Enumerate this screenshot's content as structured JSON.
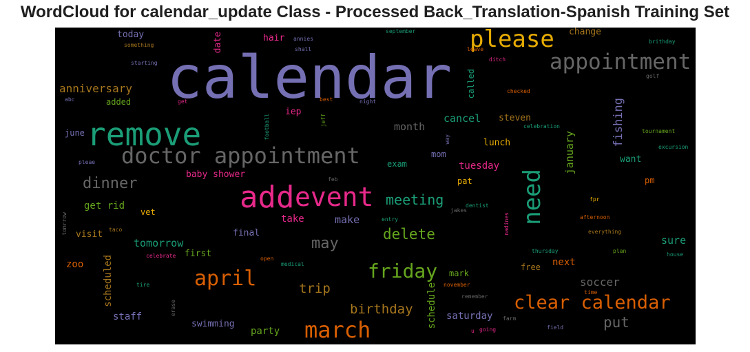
{
  "chart_data": {
    "type": "wordcloud",
    "title": "WordCloud for calendar_update Class - Processed Back_Translation-Spanish Training Set",
    "background": "#000000",
    "palette": [
      "#7570b3",
      "#1b9e77",
      "#d95f02",
      "#e7298a",
      "#66a61e",
      "#e6ab02",
      "#a6761d",
      "#666666"
    ],
    "words": [
      {
        "text": "calendar",
        "weight": 100,
        "color": "#7570b3"
      },
      {
        "text": "remove",
        "weight": 57,
        "color": "#1b9e77"
      },
      {
        "text": "add",
        "weight": 52,
        "color": "#e7298a"
      },
      {
        "text": "event",
        "weight": 46,
        "color": "#e7298a"
      },
      {
        "text": "need",
        "weight": 40,
        "color": "#1b9e77"
      },
      {
        "text": "please",
        "weight": 38,
        "color": "#e6ab02"
      },
      {
        "text": "doctor appointment",
        "weight": 38,
        "color": "#666666"
      },
      {
        "text": "appointment",
        "weight": 36,
        "color": "#666666"
      },
      {
        "text": "march",
        "weight": 36,
        "color": "#d95f02"
      },
      {
        "text": "april",
        "weight": 33,
        "color": "#d95f02"
      },
      {
        "text": "clear calendar",
        "weight": 31,
        "color": "#d95f02"
      },
      {
        "text": "friday",
        "weight": 31,
        "color": "#66a61e"
      },
      {
        "text": "dinner",
        "weight": 26,
        "color": "#666666"
      },
      {
        "text": "may",
        "weight": 24,
        "color": "#666666"
      },
      {
        "text": "delete",
        "weight": 24,
        "color": "#66a61e"
      },
      {
        "text": "meeting",
        "weight": 22,
        "color": "#1b9e77"
      },
      {
        "text": "put",
        "weight": 22,
        "color": "#666666"
      },
      {
        "text": "fishing",
        "weight": 20,
        "color": "#7570b3"
      },
      {
        "text": "birthday",
        "weight": 20,
        "color": "#a6761d"
      },
      {
        "text": "trip",
        "weight": 20,
        "color": "#a6761d"
      },
      {
        "text": "soccer",
        "weight": 17,
        "color": "#666666"
      },
      {
        "text": "january",
        "weight": 17,
        "color": "#66a61e"
      },
      {
        "text": "anniversary",
        "weight": 17,
        "color": "#a6761d"
      },
      {
        "text": "cancel",
        "weight": 17,
        "color": "#1b9e77"
      },
      {
        "text": "tomorrow",
        "weight": 16,
        "color": "#1b9e77"
      },
      {
        "text": "month",
        "weight": 16,
        "color": "#666666"
      },
      {
        "text": "scheduled",
        "weight": 16,
        "color": "#a6761d"
      },
      {
        "text": "schedule",
        "weight": 16,
        "color": "#66a61e"
      },
      {
        "text": "sure",
        "weight": 16,
        "color": "#1b9e77"
      },
      {
        "text": "make",
        "weight": 16,
        "color": "#7570b3"
      },
      {
        "text": "take",
        "weight": 16,
        "color": "#e7298a"
      },
      {
        "text": "tuesday",
        "weight": 15,
        "color": "#e7298a"
      },
      {
        "text": "saturday",
        "weight": 15,
        "color": "#7570b3"
      },
      {
        "text": "party",
        "weight": 15,
        "color": "#66a61e"
      },
      {
        "text": "staff",
        "weight": 15,
        "color": "#7570b3"
      },
      {
        "text": "next",
        "weight": 14,
        "color": "#d95f02"
      },
      {
        "text": "baby shower",
        "weight": 14,
        "color": "#e7298a"
      },
      {
        "text": "get rid",
        "weight": 14,
        "color": "#66a61e"
      },
      {
        "text": "change",
        "weight": 13,
        "color": "#a6761d"
      },
      {
        "text": "steven",
        "weight": 13,
        "color": "#a6761d"
      },
      {
        "text": "lunch",
        "weight": 13,
        "color": "#e6ab02"
      },
      {
        "text": "want",
        "weight": 13,
        "color": "#1b9e77"
      },
      {
        "text": "swimming",
        "weight": 13,
        "color": "#7570b3"
      },
      {
        "text": "date",
        "weight": 13,
        "color": "#e7298a"
      },
      {
        "text": "today",
        "weight": 13,
        "color": "#7570b3"
      },
      {
        "text": "hair",
        "weight": 13,
        "color": "#e7298a"
      },
      {
        "text": "zoo",
        "weight": 14,
        "color": "#d95f02"
      },
      {
        "text": "first",
        "weight": 13,
        "color": "#66a61e"
      },
      {
        "text": "visit",
        "weight": 13,
        "color": "#a6761d"
      },
      {
        "text": "final",
        "weight": 13,
        "color": "#7570b3"
      },
      {
        "text": "iep",
        "weight": 13,
        "color": "#e7298a"
      },
      {
        "text": "mom",
        "weight": 12,
        "color": "#7570b3"
      },
      {
        "text": "pat",
        "weight": 12,
        "color": "#e6ab02"
      },
      {
        "text": "pm",
        "weight": 12,
        "color": "#d95f02"
      },
      {
        "text": "exam",
        "weight": 12,
        "color": "#1b9e77"
      },
      {
        "text": "mark",
        "weight": 12,
        "color": "#66a61e"
      },
      {
        "text": "free",
        "weight": 12,
        "color": "#a6761d"
      },
      {
        "text": "called",
        "weight": 12,
        "color": "#1b9e77"
      },
      {
        "text": "added",
        "weight": 12,
        "color": "#66a61e"
      },
      {
        "text": "june",
        "weight": 12,
        "color": "#7570b3"
      },
      {
        "text": "vet",
        "weight": 12,
        "color": "#e6ab02"
      },
      {
        "text": "something",
        "weight": 8,
        "color": "#a6761d"
      },
      {
        "text": "starting",
        "weight": 8,
        "color": "#7570b3"
      },
      {
        "text": "annies",
        "weight": 8,
        "color": "#7570b3"
      },
      {
        "text": "shall",
        "weight": 8,
        "color": "#7570b3"
      },
      {
        "text": "september",
        "weight": 8,
        "color": "#1b9e77"
      },
      {
        "text": "leave",
        "weight": 8,
        "color": "#d95f02"
      },
      {
        "text": "ditch",
        "weight": 8,
        "color": "#e7298a"
      },
      {
        "text": "brithday",
        "weight": 8,
        "color": "#1b9e77"
      },
      {
        "text": "golf",
        "weight": 8,
        "color": "#666666"
      },
      {
        "text": "checked",
        "weight": 8,
        "color": "#d95f02"
      },
      {
        "text": "best",
        "weight": 8,
        "color": "#d95f02"
      },
      {
        "text": "night",
        "weight": 8,
        "color": "#7570b3"
      },
      {
        "text": "abc",
        "weight": 8,
        "color": "#7570b3"
      },
      {
        "text": "get",
        "weight": 8,
        "color": "#e7298a"
      },
      {
        "text": "football",
        "weight": 8,
        "color": "#1b9e77"
      },
      {
        "text": "jeff",
        "weight": 8,
        "color": "#66a61e"
      },
      {
        "text": "celebration",
        "weight": 8,
        "color": "#1b9e77"
      },
      {
        "text": "tournament",
        "weight": 8,
        "color": "#66a61e"
      },
      {
        "text": "excursion",
        "weight": 8,
        "color": "#1b9e77"
      },
      {
        "text": "way",
        "weight": 8,
        "color": "#7570b3"
      },
      {
        "text": "pleae",
        "weight": 8,
        "color": "#7570b3"
      },
      {
        "text": "feb",
        "weight": 8,
        "color": "#666666"
      },
      {
        "text": "fpr",
        "weight": 8,
        "color": "#e6ab02"
      },
      {
        "text": "dentist",
        "weight": 8,
        "color": "#1b9e77"
      },
      {
        "text": "jakes",
        "weight": 8,
        "color": "#666666"
      },
      {
        "text": "afternoon",
        "weight": 8,
        "color": "#d95f02"
      },
      {
        "text": "tomrrow",
        "weight": 8,
        "color": "#666666"
      },
      {
        "text": "taco",
        "weight": 8,
        "color": "#a6761d"
      },
      {
        "text": "entry",
        "weight": 8,
        "color": "#1b9e77"
      },
      {
        "text": "everything",
        "weight": 8,
        "color": "#a6761d"
      },
      {
        "text": "nadines",
        "weight": 8,
        "color": "#e7298a"
      },
      {
        "text": "celebrate",
        "weight": 8,
        "color": "#e7298a"
      },
      {
        "text": "open",
        "weight": 8,
        "color": "#d95f02"
      },
      {
        "text": "thursday",
        "weight": 8,
        "color": "#1b9e77"
      },
      {
        "text": "plan",
        "weight": 8,
        "color": "#66a61e"
      },
      {
        "text": "house",
        "weight": 8,
        "color": "#1b9e77"
      },
      {
        "text": "medical",
        "weight": 8,
        "color": "#1b9e77"
      },
      {
        "text": "tire",
        "weight": 8,
        "color": "#1b9e77"
      },
      {
        "text": "november",
        "weight": 8,
        "color": "#d95f02"
      },
      {
        "text": "time",
        "weight": 8,
        "color": "#d95f02"
      },
      {
        "text": "erase",
        "weight": 8,
        "color": "#666666"
      },
      {
        "text": "remember",
        "weight": 8,
        "color": "#666666"
      },
      {
        "text": "farm",
        "weight": 8,
        "color": "#666666"
      },
      {
        "text": "u",
        "weight": 8,
        "color": "#e7298a"
      },
      {
        "text": "going",
        "weight": 8,
        "color": "#e7298a"
      },
      {
        "text": "field",
        "weight": 8,
        "color": "#7570b3"
      }
    ]
  }
}
